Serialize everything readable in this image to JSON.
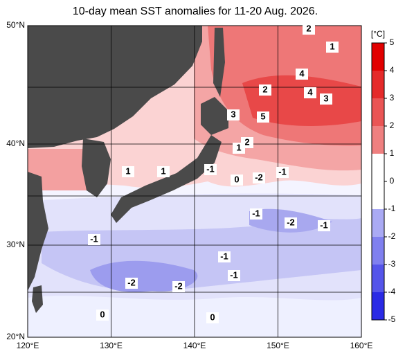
{
  "title": "10-day mean SST anomalies for 11-20 Aug. 2026.",
  "x_axis": {
    "ticks": [
      "120°E",
      "130°E",
      "140°E",
      "150°E",
      "160°E"
    ]
  },
  "y_axis": {
    "ticks": [
      "50°N",
      "40°N",
      "30°N",
      "20°N"
    ]
  },
  "colorbar": {
    "unit": "[°C]",
    "ticks": [
      5,
      4,
      3,
      2,
      1,
      0,
      -1,
      -2,
      -3,
      -4,
      -5
    ]
  },
  "contour_labels": [
    "2",
    "1",
    "4",
    "2",
    "4",
    "3",
    "3",
    "5",
    "2",
    "1",
    "1",
    "1",
    "-1",
    "0",
    "-2",
    "-1",
    "-1",
    "-2",
    "-1",
    "-1",
    "-1",
    "-1",
    "-2",
    "-2",
    "0",
    "0"
  ]
}
